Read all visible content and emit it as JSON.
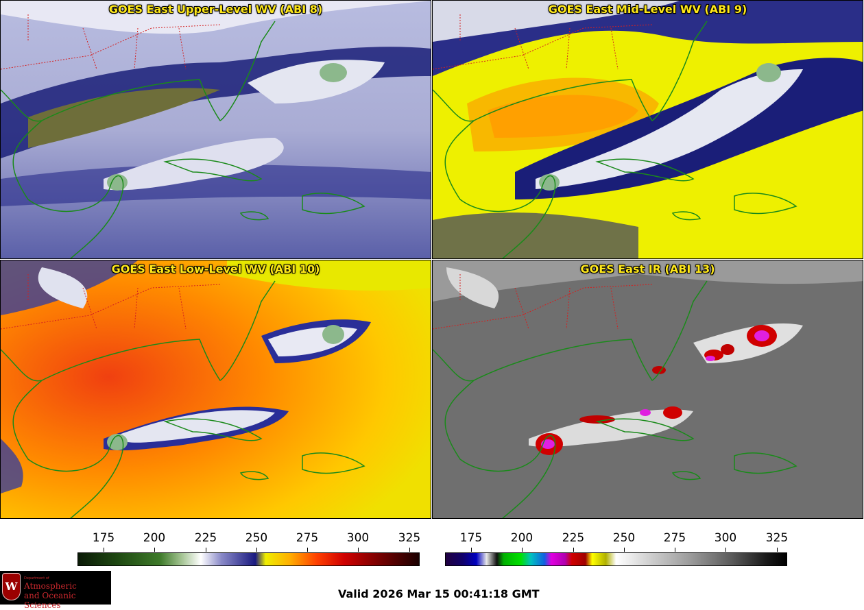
{
  "panels": [
    {
      "title": "GOES East Upper-Level WV (ABI 8)"
    },
    {
      "title": "GOES East Mid-Level WV (ABI 9)"
    },
    {
      "title": "GOES East Low-Level WV (ABI 10)"
    },
    {
      "title": "GOES East IR (ABI 13)"
    }
  ],
  "colorbars": {
    "wv": {
      "ticks": [
        "175",
        "200",
        "225",
        "250",
        "275",
        "300",
        "325"
      ]
    },
    "ir": {
      "ticks": [
        "175",
        "200",
        "225",
        "250",
        "275",
        "300",
        "325"
      ]
    }
  },
  "logo": {
    "crest_letter": "W",
    "department": "Department of",
    "line1": "Atmospheric",
    "line2": "and Oceanic Sciences"
  },
  "valid_text": "Valid 2026 Mar 15 00:41:18 GMT",
  "colors": {
    "coastline": "#1a8a1a",
    "state_borders": "#d42020",
    "title_text": "#ffe81a"
  }
}
